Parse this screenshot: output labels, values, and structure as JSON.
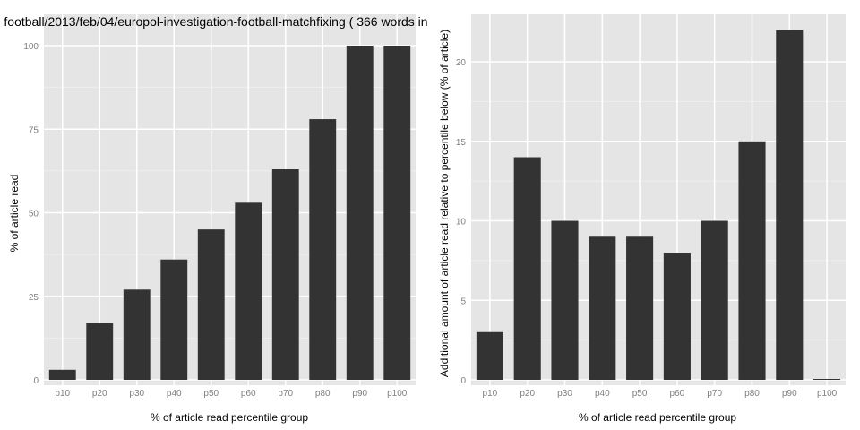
{
  "chart_data": [
    {
      "type": "bar",
      "title": "football/2013/feb/04/europol-investigation-football-matchfixing ( 366 words in",
      "xlabel": "% of article read percentile group",
      "ylabel": "% of article read",
      "categories": [
        "p10",
        "p20",
        "p30",
        "p40",
        "p50",
        "p60",
        "p70",
        "p80",
        "p90",
        "p100"
      ],
      "values": [
        3,
        17,
        27,
        36,
        45,
        53,
        63,
        78,
        100,
        100
      ],
      "ylim": [
        0,
        105
      ],
      "yticks": [
        0,
        25,
        50,
        75,
        100
      ],
      "grid": true,
      "colors": {
        "bar": "#333333",
        "panel": "#e5e5e5",
        "grid_major": "#ffffff",
        "grid_minor": "#f2f2f2",
        "tick_text": "#7f7f7f"
      }
    },
    {
      "type": "bar",
      "title": "",
      "xlabel": "% of article read percentile group",
      "ylabel": "Additional amount of article read relative to percentile below (% of article)",
      "categories": [
        "p10",
        "p20",
        "p30",
        "p40",
        "p50",
        "p60",
        "p70",
        "p80",
        "p90",
        "p100"
      ],
      "values": [
        3,
        14,
        10,
        9,
        9,
        8,
        10,
        15,
        22,
        0
      ],
      "ylim": [
        -0.3,
        23
      ],
      "yticks": [
        0,
        5,
        10,
        15,
        20
      ],
      "grid": true,
      "colors": {
        "bar": "#333333",
        "panel": "#e5e5e5",
        "grid_major": "#ffffff",
        "grid_minor": "#f2f2f2",
        "tick_text": "#7f7f7f"
      }
    }
  ]
}
